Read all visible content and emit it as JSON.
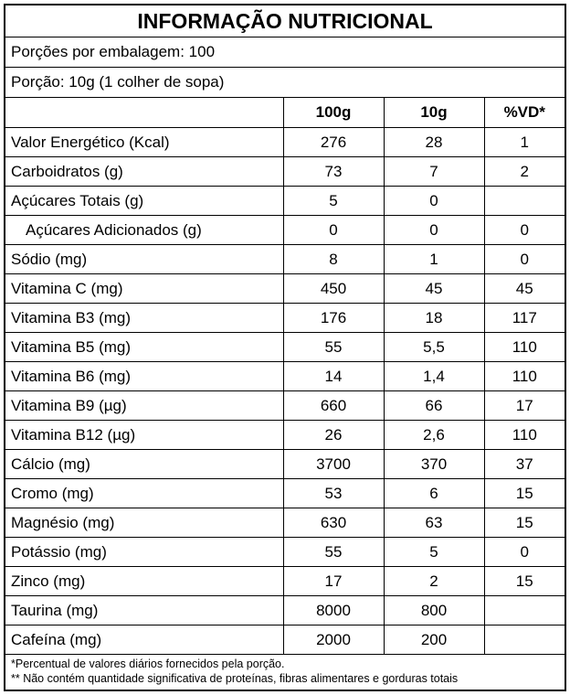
{
  "title": "INFORMAÇÃO NUTRICIONAL",
  "servings_per_package": "Porções por embalagem: 100",
  "serving_size": "Porção: 10g (1 colher de sopa)",
  "headers": [
    "",
    "100g",
    "10g",
    "%VD*"
  ],
  "rows": [
    {
      "name": "Valor Energético (Kcal)",
      "per100": "276",
      "per10": "28",
      "vd": "1",
      "indent": false
    },
    {
      "name": "Carboidratos (g)",
      "per100": "73",
      "per10": "7",
      "vd": "2",
      "indent": false
    },
    {
      "name": "Açúcares Totais (g)",
      "per100": "5",
      "per10": "0",
      "vd": "",
      "indent": false
    },
    {
      "name": "Açúcares Adicionados (g)",
      "per100": "0",
      "per10": "0",
      "vd": "0",
      "indent": true
    },
    {
      "name": "Sódio (mg)",
      "per100": "8",
      "per10": "1",
      "vd": "0",
      "indent": false
    },
    {
      "name": "Vitamina C (mg)",
      "per100": "450",
      "per10": "45",
      "vd": "45",
      "indent": false
    },
    {
      "name": "Vitamina B3 (mg)",
      "per100": "176",
      "per10": "18",
      "vd": "117",
      "indent": false
    },
    {
      "name": "Vitamina B5 (mg)",
      "per100": "55",
      "per10": "5,5",
      "vd": "110",
      "indent": false
    },
    {
      "name": "Vitamina B6 (mg)",
      "per100": "14",
      "per10": "1,4",
      "vd": "110",
      "indent": false
    },
    {
      "name": "Vitamina B9 (µg)",
      "per100": "660",
      "per10": "66",
      "vd": "17",
      "indent": false
    },
    {
      "name": "Vitamina B12 (µg)",
      "per100": "26",
      "per10": "2,6",
      "vd": "110",
      "indent": false
    },
    {
      "name": "Cálcio (mg)",
      "per100": "3700",
      "per10": "370",
      "vd": "37",
      "indent": false
    },
    {
      "name": "Cromo (mg)",
      "per100": "53",
      "per10": "6",
      "vd": "15",
      "indent": false
    },
    {
      "name": "Magnésio (mg)",
      "per100": "630",
      "per10": "63",
      "vd": "15",
      "indent": false
    },
    {
      "name": "Potássio (mg)",
      "per100": "55",
      "per10": "5",
      "vd": "0",
      "indent": false
    },
    {
      "name": "Zinco (mg)",
      "per100": "17",
      "per10": "2",
      "vd": "15",
      "indent": false
    },
    {
      "name": "Taurina (mg)",
      "per100": "8000",
      "per10": "800",
      "vd": "",
      "indent": false
    },
    {
      "name": "Cafeína (mg)",
      "per100": "2000",
      "per10": "200",
      "vd": "",
      "indent": false
    }
  ],
  "footnotes": [
    "*Percentual de valores diários fornecidos pela porção.",
    "** Não contém quantidade significativa de proteínas, fibras alimentares e gorduras totais"
  ]
}
